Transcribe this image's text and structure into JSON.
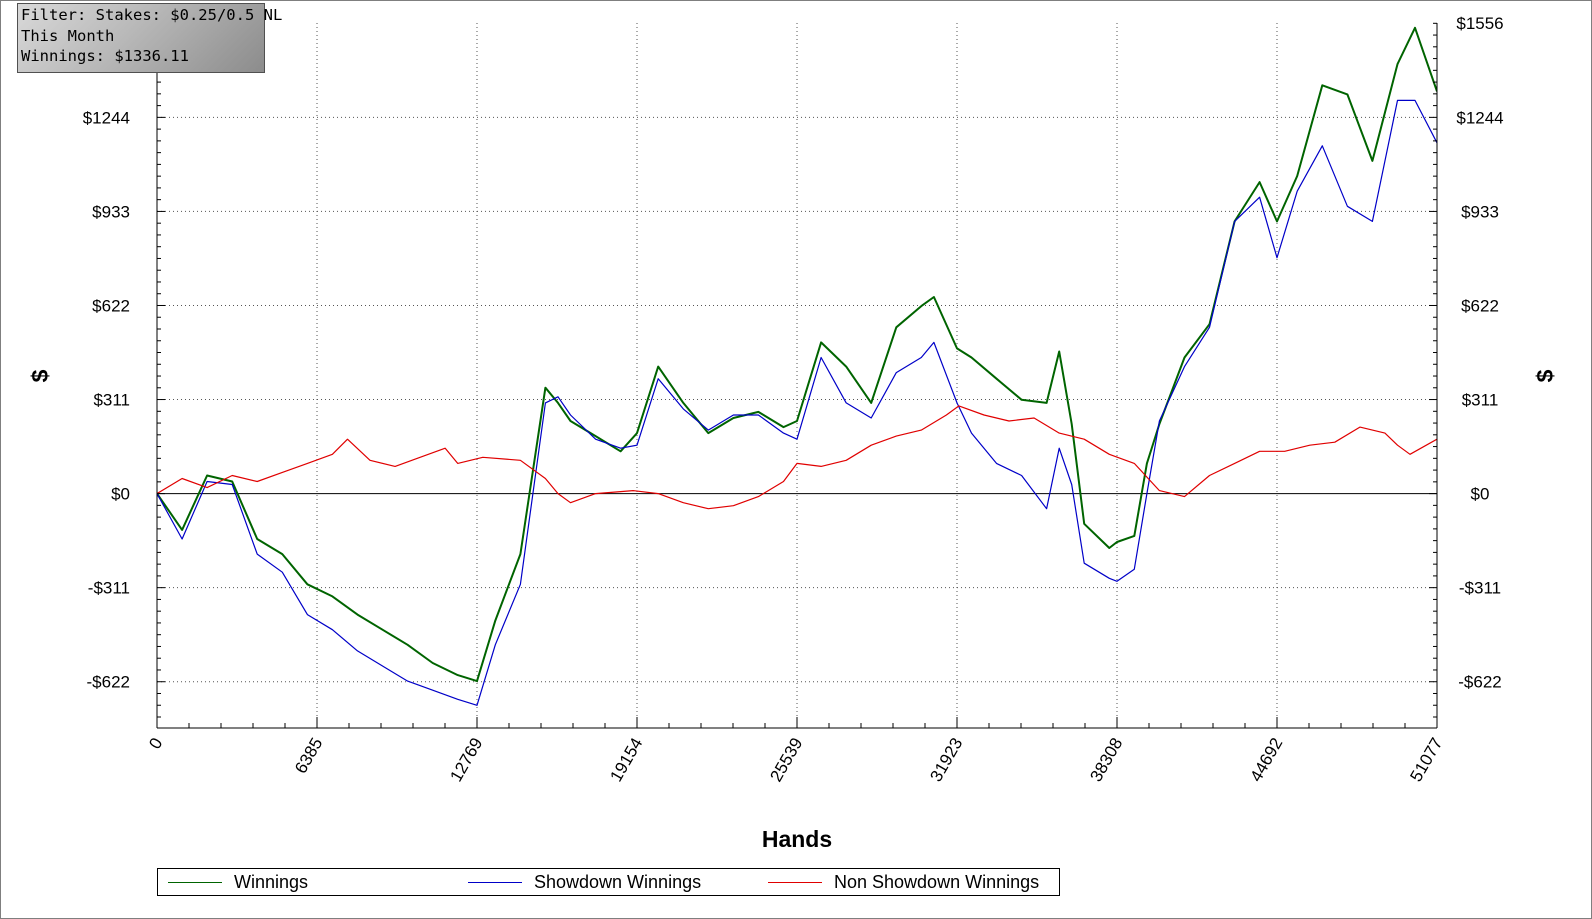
{
  "filter_box": {
    "line1": "Filter: Stakes: $0.25/0.5 NL",
    "line2": "This Month",
    "line3": "Winnings: $1336.11"
  },
  "legend": [
    {
      "name": "Winnings",
      "color": "#006400"
    },
    {
      "name": "Showdown Winnings",
      "color": "#0000c8"
    },
    {
      "name": "Non Showdown Winnings",
      "color": "#e00000"
    }
  ],
  "chart_data": {
    "type": "line",
    "xlabel": "Hands",
    "ylabel": "$",
    "xlim": [
      0,
      51077
    ],
    "ylim": [
      -775,
      1556
    ],
    "x_ticks": [
      0,
      6385,
      12769,
      19154,
      25539,
      31923,
      38308,
      44692,
      51077
    ],
    "y_ticks": [
      {
        "value": -622,
        "label": "-$622"
      },
      {
        "value": -311,
        "label": "-$311"
      },
      {
        "value": 0,
        "label": "$0"
      },
      {
        "value": 311,
        "label": "$311"
      },
      {
        "value": 622,
        "label": "$622"
      },
      {
        "value": 933,
        "label": "$933"
      },
      {
        "value": 1244,
        "label": "$1244"
      },
      {
        "value": 1556,
        "label": "$1556"
      }
    ],
    "grid": true,
    "legend_position": "bottom",
    "series": [
      {
        "name": "Winnings",
        "color": "#006400",
        "x": [
          0,
          1000,
          2000,
          3000,
          4000,
          5000,
          6000,
          7000,
          8000,
          9000,
          10000,
          11000,
          12000,
          12769,
          13500,
          14500,
          15500,
          16000,
          16500,
          17500,
          18500,
          19154,
          20000,
          21000,
          22000,
          23000,
          24000,
          25000,
          25539,
          26500,
          27500,
          28500,
          29500,
          30500,
          31000,
          31923,
          32500,
          33500,
          34500,
          35500,
          36000,
          36500,
          37000,
          38000,
          38308,
          39000,
          39500,
          40000,
          41000,
          42000,
          43000,
          44000,
          44692,
          45500,
          46500,
          47500,
          48500,
          49500,
          50200,
          51077
        ],
        "values": [
          0,
          -120,
          60,
          40,
          -150,
          -200,
          -300,
          -340,
          -400,
          -450,
          -500,
          -560,
          -600,
          -620,
          -420,
          -200,
          350,
          300,
          240,
          190,
          140,
          200,
          420,
          300,
          200,
          250,
          270,
          220,
          240,
          500,
          420,
          300,
          550,
          620,
          650,
          480,
          450,
          380,
          310,
          300,
          470,
          230,
          -100,
          -180,
          -160,
          -140,
          100,
          230,
          450,
          560,
          900,
          1030,
          900,
          1050,
          1350,
          1320,
          1100,
          1420,
          1540,
          1330
        ]
      },
      {
        "name": "Showdown Winnings",
        "color": "#0000c8",
        "x": [
          0,
          1000,
          2000,
          3000,
          4000,
          5000,
          6000,
          7000,
          8000,
          9000,
          10000,
          11000,
          12000,
          12769,
          13500,
          14500,
          15500,
          16000,
          16500,
          17500,
          18500,
          19154,
          20000,
          21000,
          22000,
          23000,
          24000,
          25000,
          25539,
          26500,
          27500,
          28500,
          29500,
          30500,
          31000,
          31923,
          32500,
          33500,
          34500,
          35500,
          36000,
          36500,
          37000,
          38000,
          38308,
          39000,
          39500,
          40000,
          41000,
          42000,
          43000,
          44000,
          44692,
          45500,
          46500,
          47500,
          48500,
          49500,
          50200,
          51077
        ],
        "values": [
          0,
          -150,
          40,
          30,
          -200,
          -260,
          -400,
          -450,
          -520,
          -570,
          -620,
          -650,
          -680,
          -700,
          -500,
          -300,
          300,
          320,
          260,
          180,
          150,
          160,
          380,
          280,
          210,
          260,
          260,
          200,
          180,
          450,
          300,
          250,
          400,
          450,
          500,
          300,
          200,
          100,
          60,
          -50,
          150,
          30,
          -230,
          -280,
          -290,
          -250,
          0,
          240,
          420,
          550,
          900,
          980,
          780,
          1000,
          1150,
          950,
          900,
          1300,
          1300,
          1160
        ]
      },
      {
        "name": "Non Showdown Winnings",
        "color": "#e00000",
        "x": [
          0,
          1000,
          2000,
          3000,
          4000,
          5000,
          6000,
          7000,
          7600,
          8500,
          9500,
          10500,
          11500,
          12000,
          13000,
          14500,
          15500,
          16000,
          16500,
          17500,
          19000,
          20000,
          21000,
          22000,
          23000,
          24000,
          25000,
          25539,
          26500,
          27500,
          28500,
          29500,
          30500,
          31500,
          32000,
          33000,
          34000,
          35000,
          36000,
          37000,
          38000,
          39000,
          40000,
          41000,
          42000,
          43000,
          44000,
          45000,
          46000,
          47000,
          48000,
          49000,
          49500,
          50000,
          51077
        ],
        "values": [
          0,
          50,
          20,
          60,
          40,
          70,
          100,
          130,
          180,
          110,
          90,
          120,
          150,
          100,
          120,
          110,
          50,
          0,
          -30,
          0,
          10,
          0,
          -30,
          -50,
          -40,
          -10,
          40,
          100,
          90,
          110,
          160,
          190,
          210,
          260,
          290,
          260,
          240,
          250,
          200,
          180,
          130,
          100,
          10,
          -10,
          60,
          100,
          140,
          140,
          160,
          170,
          220,
          200,
          160,
          130,
          180
        ]
      }
    ]
  }
}
